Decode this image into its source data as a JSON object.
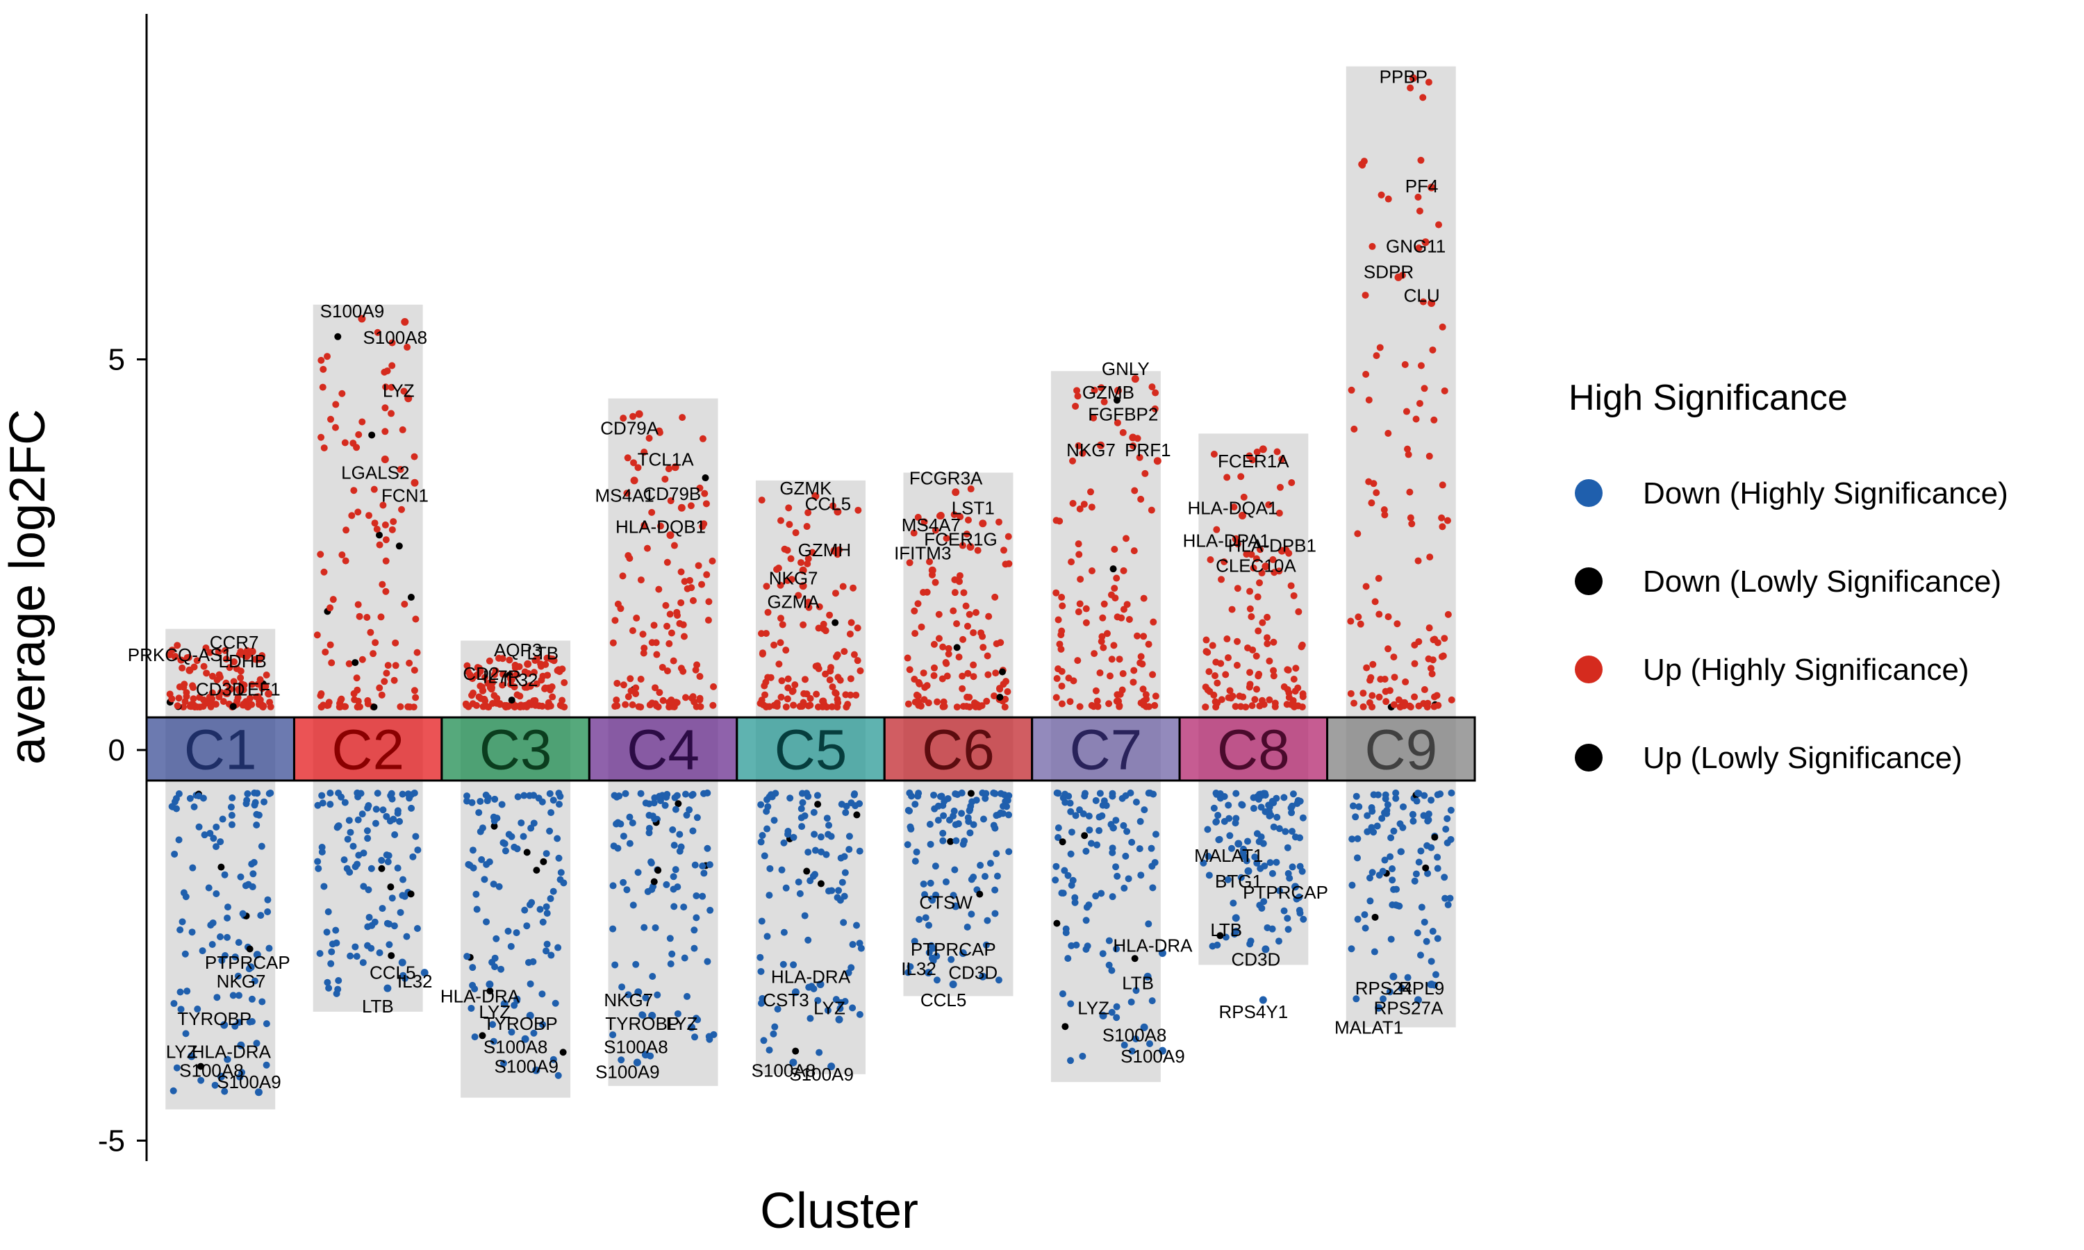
{
  "chart_data": {
    "type": "scatter",
    "xlabel": "Cluster",
    "ylabel": "average log2FC",
    "ylim": [
      -5.2,
      9.4
    ],
    "y_ticks": [
      -5,
      0,
      5
    ],
    "grid": false,
    "legend": {
      "title": "High Significance",
      "placement": "right",
      "entries": [
        {
          "label": "Down (Highly Significance)",
          "color": "#1f5fad"
        },
        {
          "label": "Down (Lowly Significance)",
          "color": "#000000"
        },
        {
          "label": "Up (Highly Significance)",
          "color": "#d52b1e"
        },
        {
          "label": "Up (Lowly Significance)",
          "color": "#000000"
        }
      ]
    },
    "clusters": [
      {
        "name": "C1",
        "color": "#3b4e96",
        "text_color": "#1e2e66",
        "range": [
          -4.6,
          1.55
        ],
        "labels": [
          {
            "text": "CCR7",
            "x": 0.28,
            "y": 1.38,
            "fc": 1.22
          },
          {
            "text": "PRKCQ-AS1",
            "x": -0.82,
            "y": 1.22,
            "fc": 1.02
          },
          {
            "text": "LDHB",
            "x": 0.45,
            "y": 1.14,
            "fc": 1.26
          },
          {
            "text": "CD3D",
            "x": 0.0,
            "y": 0.78,
            "fc": 0.78
          },
          {
            "text": "LEF1",
            "x": 0.78,
            "y": 0.78,
            "fc": 0.72
          },
          {
            "text": "PTPRCAP",
            "x": 0.55,
            "y": -2.72,
            "fc": -2.62
          },
          {
            "text": "NKG7",
            "x": 0.42,
            "y": -2.96,
            "fc": -2.78
          },
          {
            "text": "TYROBP",
            "x": -0.12,
            "y": -3.44,
            "fc": -3.52
          },
          {
            "text": "LYZ",
            "x": -0.78,
            "y": -3.86,
            "fc": -3.92
          },
          {
            "text": "HLA-DRA",
            "x": 0.22,
            "y": -3.86,
            "fc": -3.78
          },
          {
            "text": "S100A8",
            "x": -0.18,
            "y": -4.1,
            "fc": -4.18
          },
          {
            "text": "S100A9",
            "x": 0.58,
            "y": -4.25,
            "fc": -4.38
          }
        ]
      },
      {
        "name": "C2",
        "color": "#e41a1c",
        "text_color": "#8a0000",
        "range": [
          -3.35,
          5.7
        ],
        "labels": [
          {
            "text": "S100A9",
            "x": -0.32,
            "y": 5.62,
            "fc": 5.52
          },
          {
            "text": "S100A8",
            "x": 0.55,
            "y": 5.28,
            "fc": 5.48
          },
          {
            "text": "LYZ",
            "x": 0.62,
            "y": 4.6,
            "fc": 4.5
          },
          {
            "text": "LGALS2",
            "x": 0.15,
            "y": 3.55,
            "fc": 3.72
          },
          {
            "text": "FCN1",
            "x": 0.75,
            "y": 3.26,
            "fc": 3.42
          },
          {
            "text": "CCL5",
            "x": 0.5,
            "y": -2.85,
            "fc": -2.72
          },
          {
            "text": "IL32",
            "x": 0.95,
            "y": -2.96,
            "fc": -2.85
          },
          {
            "text": "LTB",
            "x": 0.2,
            "y": -3.28,
            "fc": -3.05
          }
        ]
      },
      {
        "name": "C3",
        "color": "#1e8c50",
        "text_color": "#0b3d1e",
        "range": [
          -4.45,
          1.4
        ],
        "labels": [
          {
            "text": "AQP3",
            "x": 0.05,
            "y": 1.28,
            "fc": 1.1
          },
          {
            "text": "LTB",
            "x": 0.55,
            "y": 1.24,
            "fc": 1.16
          },
          {
            "text": "CD2",
            "x": -0.7,
            "y": 0.98,
            "fc": 0.8
          },
          {
            "text": "IL7R",
            "x": -0.28,
            "y": 0.94,
            "fc": 0.9
          },
          {
            "text": "IL32",
            "x": 0.1,
            "y": 0.9,
            "fc": 0.82
          },
          {
            "text": "HLA-DRA",
            "x": -0.72,
            "y": -3.15,
            "fc": -3.0
          },
          {
            "text": "LYZ",
            "x": -0.42,
            "y": -3.35,
            "fc": -3.25
          },
          {
            "text": "TYROBP",
            "x": 0.1,
            "y": -3.5,
            "fc": -3.4
          },
          {
            "text": "S100A8",
            "x": 0.0,
            "y": -3.8,
            "fc": -3.7
          },
          {
            "text": "S100A9",
            "x": 0.22,
            "y": -4.05,
            "fc": -4.1
          }
        ]
      },
      {
        "name": "C4",
        "color": "#6a2d8f",
        "text_color": "#2c0b45",
        "range": [
          -4.3,
          4.5
        ],
        "labels": [
          {
            "text": "CD79A",
            "x": -0.68,
            "y": 4.12,
            "fc": 4.3
          },
          {
            "text": "TCL1A",
            "x": 0.05,
            "y": 3.72,
            "fc": 3.62
          },
          {
            "text": "MS4A1",
            "x": -0.78,
            "y": 3.26,
            "fc": 3.45
          },
          {
            "text": "CD79B",
            "x": 0.18,
            "y": 3.28,
            "fc": 3.1
          },
          {
            "text": "HLA-DQB1",
            "x": -0.05,
            "y": 2.86,
            "fc": 2.75
          },
          {
            "text": "NKG7",
            "x": -0.7,
            "y": -3.2,
            "fc": -3.1
          },
          {
            "text": "TYROBP",
            "x": -0.42,
            "y": -3.5,
            "fc": -3.4
          },
          {
            "text": "LYZ",
            "x": 0.38,
            "y": -3.5,
            "fc": -3.55
          },
          {
            "text": "S100A8",
            "x": -0.55,
            "y": -3.8,
            "fc": -3.9
          },
          {
            "text": "S100A9",
            "x": -0.72,
            "y": -4.12,
            "fc": -4.0
          }
        ]
      },
      {
        "name": "C5",
        "color": "#2a9a96",
        "text_color": "#063d3d",
        "range": [
          -4.15,
          3.45
        ],
        "labels": [
          {
            "text": "GZMK",
            "x": -0.1,
            "y": 3.35,
            "fc": 3.25
          },
          {
            "text": "CCL5",
            "x": 0.35,
            "y": 3.15,
            "fc": 3.05
          },
          {
            "text": "GZMH",
            "x": 0.28,
            "y": 2.56,
            "fc": 2.55
          },
          {
            "text": "NKG7",
            "x": -0.35,
            "y": 2.2,
            "fc": 2.3
          },
          {
            "text": "GZMA",
            "x": -0.35,
            "y": 1.9,
            "fc": 2.1
          },
          {
            "text": "HLA-DRA",
            "x": 0.0,
            "y": -2.9,
            "fc": -3.0
          },
          {
            "text": "CST3",
            "x": -0.5,
            "y": -3.2,
            "fc": -3.1
          },
          {
            "text": "LYZ",
            "x": 0.38,
            "y": -3.3,
            "fc": -3.45
          },
          {
            "text": "S100A8",
            "x": -0.55,
            "y": -4.1,
            "fc": -4.0
          },
          {
            "text": "S100A9",
            "x": 0.22,
            "y": -4.15,
            "fc": -4.05
          }
        ]
      },
      {
        "name": "C6",
        "color": "#c1272d",
        "text_color": "#5c0c0f",
        "range": [
          -3.15,
          3.55
        ],
        "labels": [
          {
            "text": "FCGR3A",
            "x": -0.25,
            "y": 3.48,
            "fc": 3.3
          },
          {
            "text": "MS4A7",
            "x": -0.55,
            "y": 2.88,
            "fc": 3.0
          },
          {
            "text": "LST1",
            "x": 0.3,
            "y": 3.1,
            "fc": 2.9
          },
          {
            "text": "FCER1G",
            "x": 0.05,
            "y": 2.7,
            "fc": 2.6
          },
          {
            "text": "IFITM3",
            "x": -0.72,
            "y": 2.52,
            "fc": 2.3
          },
          {
            "text": "CTSW",
            "x": -0.25,
            "y": -1.95,
            "fc": -2.0
          },
          {
            "text": "PTPRCAP",
            "x": -0.1,
            "y": -2.55,
            "fc": -2.6
          },
          {
            "text": "IL32",
            "x": -0.8,
            "y": -2.8,
            "fc": -2.85
          },
          {
            "text": "CD3D",
            "x": 0.3,
            "y": -2.85,
            "fc": -2.9
          },
          {
            "text": "CCL5",
            "x": -0.3,
            "y": -3.2,
            "fc": -3.0
          }
        ]
      },
      {
        "name": "C7",
        "color": "#6f63a6",
        "text_color": "#29225a",
        "range": [
          -4.25,
          4.85
        ],
        "labels": [
          {
            "text": "GNLY",
            "x": 0.4,
            "y": 4.88,
            "fc": 4.75
          },
          {
            "text": "GZMB",
            "x": 0.05,
            "y": 4.58,
            "fc": 4.6
          },
          {
            "text": "FGFBP2",
            "x": 0.35,
            "y": 4.3,
            "fc": 4.0
          },
          {
            "text": "NKG7",
            "x": -0.3,
            "y": 3.84,
            "fc": 3.9
          },
          {
            "text": "PRF1",
            "x": 0.85,
            "y": 3.84,
            "fc": 3.7
          },
          {
            "text": "HLA-DRA",
            "x": 0.95,
            "y": -2.5,
            "fc": -2.6
          },
          {
            "text": "LTB",
            "x": 0.65,
            "y": -2.98,
            "fc": -2.9
          },
          {
            "text": "LYZ",
            "x": -0.25,
            "y": -3.3,
            "fc": -3.4
          },
          {
            "text": "S100A8",
            "x": 0.58,
            "y": -3.65,
            "fc": -3.55
          },
          {
            "text": "S100A9",
            "x": 0.95,
            "y": -3.92,
            "fc": -3.85
          }
        ]
      },
      {
        "name": "C8",
        "color": "#b3266e",
        "text_color": "#4a0a2c",
        "range": [
          -2.75,
          4.05
        ],
        "labels": [
          {
            "text": "FCER1A",
            "x": 0.0,
            "y": 3.7,
            "fc": 3.85
          },
          {
            "text": "HLA-DQA1",
            "x": -0.42,
            "y": 3.1,
            "fc": 3.0
          },
          {
            "text": "HLA-DPA1",
            "x": -0.55,
            "y": 2.68,
            "fc": 2.7
          },
          {
            "text": "HLA-DPB1",
            "x": 0.38,
            "y": 2.62,
            "fc": 2.55
          },
          {
            "text": "CLEC10A",
            "x": 0.05,
            "y": 2.36,
            "fc": 2.35
          },
          {
            "text": "MALAT1",
            "x": -0.5,
            "y": -1.35,
            "fc": -1.2
          },
          {
            "text": "BTG1",
            "x": -0.3,
            "y": -1.68,
            "fc": -1.55
          },
          {
            "text": "PTPRCAP",
            "x": 0.65,
            "y": -1.82,
            "fc": -1.75
          },
          {
            "text": "LTB",
            "x": -0.55,
            "y": -2.3,
            "fc": -2.15
          },
          {
            "text": "CD3D",
            "x": 0.05,
            "y": -2.68,
            "fc": -2.55
          },
          {
            "text": "RPS4Y1",
            "x": 0.0,
            "y": -3.35,
            "fc": -3.2
          }
        ]
      },
      {
        "name": "C9",
        "color": "#808080",
        "text_color": "#404040",
        "range": [
          -3.55,
          8.75
        ],
        "labels": [
          {
            "text": "PPBP",
            "x": 0.05,
            "y": 8.62,
            "fc": 8.6
          },
          {
            "text": "PF4",
            "x": 0.42,
            "y": 7.22,
            "fc": 7.2
          },
          {
            "text": "GNG11",
            "x": 0.3,
            "y": 6.45,
            "fc": 6.5
          },
          {
            "text": "SDPR",
            "x": -0.25,
            "y": 6.12,
            "fc": 6.05
          },
          {
            "text": "CLU",
            "x": 0.42,
            "y": 5.82,
            "fc": 5.72
          },
          {
            "text": "RPS24",
            "x": -0.35,
            "y": -3.05,
            "fc": -2.9
          },
          {
            "text": "RPL9",
            "x": 0.42,
            "y": -3.05,
            "fc": -3.0
          },
          {
            "text": "RPS27A",
            "x": 0.15,
            "y": -3.3,
            "fc": -3.2
          },
          {
            "text": "MALAT1",
            "x": -0.65,
            "y": -3.55,
            "fc": -3.3
          }
        ]
      }
    ]
  }
}
